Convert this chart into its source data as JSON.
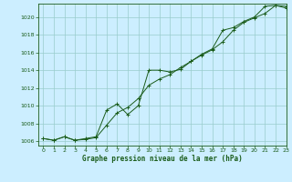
{
  "title": "Graphe pression niveau de la mer (hPa)",
  "bg_color": "#cceeff",
  "line_color": "#1a5c1a",
  "grid_color": "#99cccc",
  "xlim": [
    -0.5,
    23
  ],
  "ylim": [
    1005.5,
    1021.5
  ],
  "xticks": [
    0,
    1,
    2,
    3,
    4,
    5,
    6,
    7,
    8,
    9,
    10,
    11,
    12,
    13,
    14,
    15,
    16,
    17,
    18,
    19,
    20,
    21,
    22,
    23
  ],
  "yticks": [
    1006,
    1008,
    1010,
    1012,
    1014,
    1016,
    1018,
    1020
  ],
  "series1_x": [
    0,
    1,
    2,
    3,
    4,
    5,
    6,
    7,
    8,
    9,
    10,
    11,
    12,
    13,
    14,
    15,
    16,
    17,
    18,
    19,
    20,
    21,
    22,
    23
  ],
  "series1_y": [
    1006.3,
    1006.1,
    1006.5,
    1006.1,
    1006.2,
    1006.4,
    1007.8,
    1009.2,
    1009.8,
    1010.8,
    1012.3,
    1013.0,
    1013.5,
    1014.3,
    1015.0,
    1015.7,
    1016.3,
    1017.2,
    1018.5,
    1019.4,
    1019.9,
    1020.4,
    1021.3,
    1021.2
  ],
  "series2_x": [
    0,
    1,
    2,
    3,
    4,
    5,
    6,
    7,
    8,
    9,
    10,
    11,
    12,
    13,
    14,
    15,
    16,
    17,
    18,
    19,
    20,
    21,
    22,
    23
  ],
  "series2_y": [
    1006.3,
    1006.1,
    1006.5,
    1006.1,
    1006.3,
    1006.5,
    1009.5,
    1010.2,
    1009.0,
    1010.0,
    1014.0,
    1014.0,
    1013.8,
    1014.1,
    1015.0,
    1015.8,
    1016.4,
    1018.5,
    1018.8,
    1019.5,
    1020.0,
    1021.2,
    1021.3,
    1021.0
  ]
}
